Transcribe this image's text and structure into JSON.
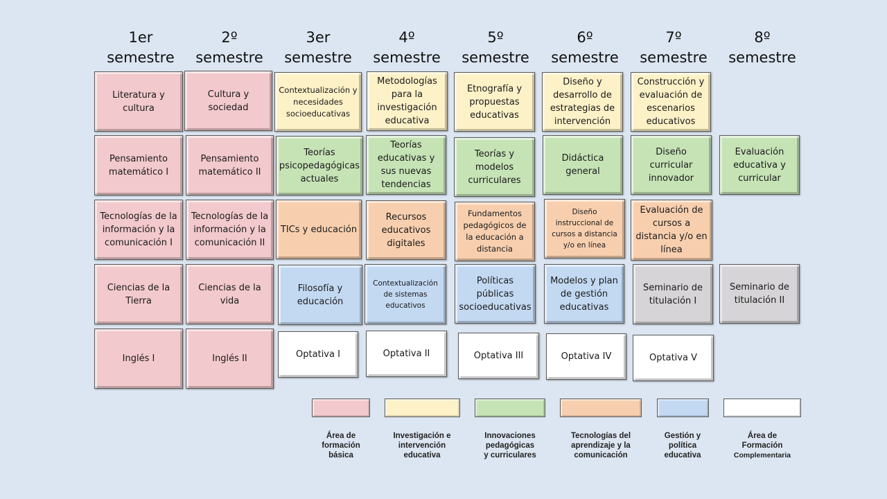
{
  "semesters": [
    {
      "line1": "1er",
      "line2": "semestre"
    },
    {
      "line1": "2º",
      "line2": "semestre"
    },
    {
      "line1": "3er",
      "line2": "semestre"
    },
    {
      "line1": "4º",
      "line2": "semestre"
    },
    {
      "line1": "5º",
      "line2": "semestre"
    },
    {
      "line1": "6º",
      "line2": "semestre"
    },
    {
      "line1": "7º",
      "line2": "semestre"
    },
    {
      "line1": "8º",
      "line2": "semestre"
    }
  ],
  "areas": {
    "basica": {
      "color": "#f2c9cc",
      "label": [
        "Área de",
        "formación",
        "básica"
      ]
    },
    "investigacion": {
      "color": "#fdf1c7",
      "label": [
        "Investigación e",
        "intervención",
        "educativa"
      ]
    },
    "innovaciones": {
      "color": "#c6e3b6",
      "label": [
        "Innovaciones",
        "pedagógicas",
        "y curriculares"
      ]
    },
    "tecnologias": {
      "color": "#f8cfae",
      "label": [
        "Tecnologías del",
        "aprendizaje y la",
        "comunicación"
      ]
    },
    "gestion": {
      "color": "#c3d9f2",
      "label": [
        "Gestión y",
        "política",
        "educativa"
      ]
    },
    "complementaria": {
      "color": "#ffffff",
      "label": [
        "Área de",
        "Formación",
        "Complementaria"
      ]
    },
    "seminario": {
      "color": "#d6d4d6"
    }
  },
  "courses": {
    "s1": [
      "Literatura y cultura",
      "Pensamiento matemático I",
      "Tecnologías de la información y la comunicación I",
      "Ciencias de la Tierra",
      "Inglés I"
    ],
    "s2": [
      "Cultura y sociedad",
      "Pensamiento matemático II",
      "Tecnologías de la información y la comunicación II",
      "Ciencias de la vida",
      "Inglés II"
    ],
    "s3": [
      "Contextualización y necesidades socioeducativas",
      "Teorías psicopedagógicas actuales",
      "TICs y educación",
      "Filosofía y educación",
      "Optativa I"
    ],
    "s4": [
      "Metodologías para la investigación educativa",
      "Teorías educativas y sus nuevas tendencias",
      "Recursos educativos digitales",
      "Contextualización de sistemas educativos",
      "Optativa II"
    ],
    "s5": [
      "Etnografía y propuestas educativas",
      "Teorías y modelos curriculares",
      "Fundamentos pedagógicos de la educación a distancia",
      "Políticas públicas socioeducativas",
      "Optativa III"
    ],
    "s6": [
      "Diseño y desarrollo de estrategias de intervención",
      "Didáctica general",
      "Diseño instruccional de cursos a distancia y/o en línea",
      "Modelos y plan de gestión educativas",
      "Optativa IV"
    ],
    "s7": [
      "Construcción y evaluación de escenarios educativos",
      "Diseño curricular innovador",
      "Evaluación de cursos a distancia y/o en línea",
      "Seminario de titulación I",
      "Optativa V"
    ],
    "s8": [
      "Evaluación educativa y curricular",
      "Seminario de titulación II"
    ]
  }
}
